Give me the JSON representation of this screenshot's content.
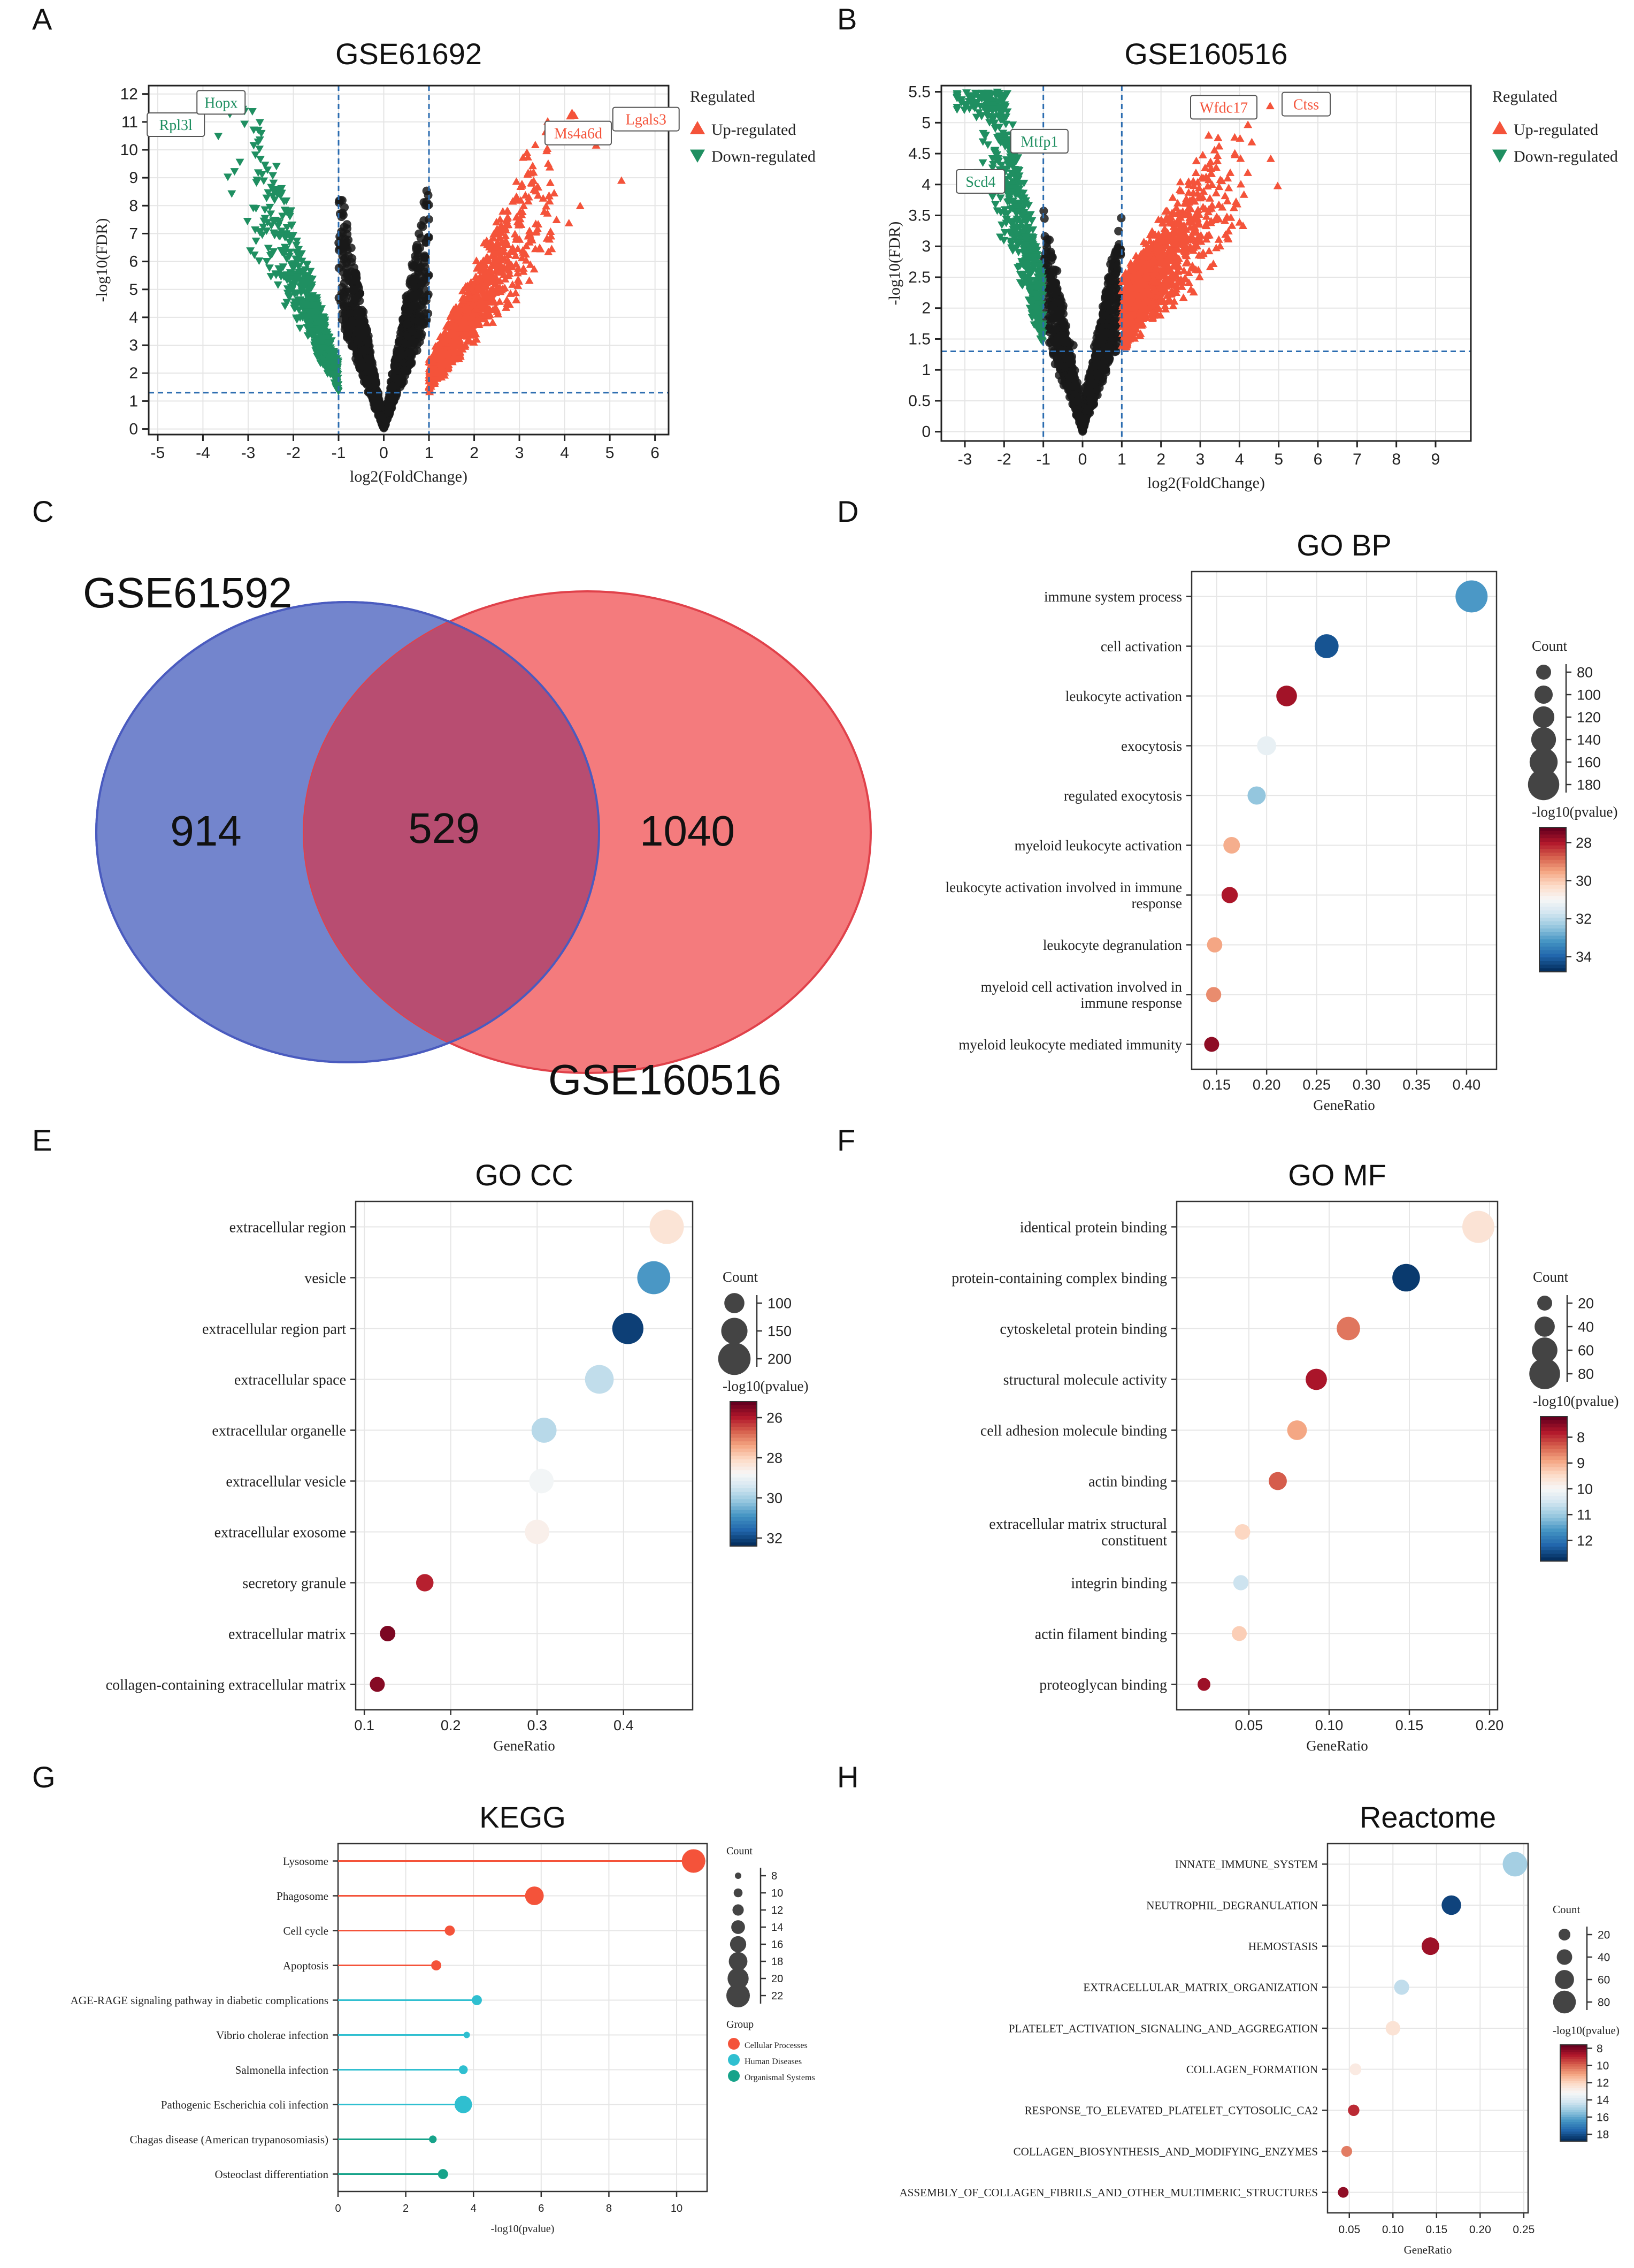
{
  "colors": {
    "up": "#f4533a",
    "down": "#1f8f61",
    "ns": "#1a1a1a",
    "venn_left": "#5a70c4",
    "venn_right": "#f26466",
    "venn_mid": "#b84d71",
    "cell_processes": "#f4533a",
    "human_diseases": "#2fbfd0",
    "organismal_systems": "#17a38a",
    "threshold": "#2b6cb0"
  },
  "panels": [
    "A",
    "B",
    "C",
    "D",
    "E",
    "F",
    "G",
    "H"
  ],
  "chart_data": [
    {
      "id": "A",
      "type": "scatter",
      "title": "GSE61692",
      "xlabel": "log2(FoldChange)",
      "ylabel": "-log10(FDR)",
      "xlim": [
        -5.2,
        6.3
      ],
      "ylim": [
        -0.2,
        12.3
      ],
      "xticks": [
        -5,
        -4,
        -3,
        -2,
        -1,
        0,
        1,
        2,
        3,
        4,
        5,
        6
      ],
      "yticks": [
        0,
        1,
        2,
        3,
        4,
        5,
        6,
        7,
        8,
        9,
        10,
        11,
        12
      ],
      "thresholds": {
        "x": [
          -1,
          1
        ],
        "y": 1.3
      },
      "volcano": {
        "ns_scale": 7.5,
        "sig_ymax": 11.2,
        "x_range": [
          -4.2,
          5.8
        ],
        "n": 1500
      },
      "legend_title": "Regulated",
      "legend": [
        "Up-regulated",
        "Down-regulated"
      ],
      "annotations": [
        {
          "text": "Rpl3l",
          "x": -4.6,
          "y": 10.9,
          "group": "down"
        },
        {
          "text": "Hopx",
          "x": -3.6,
          "y": 11.7,
          "group": "down"
        },
        {
          "text": "Ms4a6d",
          "x": 4.3,
          "y": 10.6,
          "group": "up"
        },
        {
          "text": "Lgals3",
          "x": 5.8,
          "y": 11.1,
          "group": "up"
        }
      ]
    },
    {
      "id": "B",
      "type": "scatter",
      "title": "GSE160516",
      "xlabel": "log2(FoldChange)",
      "ylabel": "-log10(FDR)",
      "xlim": [
        -3.6,
        9.9
      ],
      "ylim": [
        -0.15,
        5.6
      ],
      "xticks": [
        -3,
        -2,
        -1,
        0,
        1,
        2,
        3,
        4,
        5,
        6,
        7,
        8,
        9
      ],
      "yticks": [
        0.0,
        0.5,
        1.0,
        1.5,
        2.0,
        2.5,
        3.0,
        3.5,
        4.0,
        4.5,
        5.0,
        5.5
      ],
      "thresholds": {
        "x": [
          -1,
          1
        ],
        "y": 1.3
      },
      "volcano": {
        "ns_scale": 3.0,
        "sig_ymax": 5.2,
        "x_range": [
          -3.2,
          8.2
        ],
        "n": 1500
      },
      "legend_title": "Regulated",
      "legend": [
        "Up-regulated",
        "Down-regulated"
      ],
      "annotations": [
        {
          "text": "Scd4",
          "x": -2.6,
          "y": 4.05,
          "group": "down"
        },
        {
          "text": "Mtfp1",
          "x": -1.1,
          "y": 4.7,
          "group": "down"
        },
        {
          "text": "Wfdc17",
          "x": 3.6,
          "y": 5.25,
          "group": "up"
        },
        {
          "text": "Ctss",
          "x": 5.7,
          "y": 5.3,
          "group": "up"
        }
      ]
    },
    {
      "id": "C",
      "type": "venn",
      "sets": [
        {
          "name": "GSE61592",
          "only": "914"
        },
        {
          "name": "GSE160516",
          "only": "1040"
        }
      ],
      "intersection": "529"
    },
    {
      "id": "D",
      "type": "scatter",
      "title": "GO BP",
      "xlabel": "GeneRatio",
      "xlim": [
        0.125,
        0.43
      ],
      "xticks": [
        "0.15",
        "0.20",
        "0.25",
        "0.30",
        "0.35",
        "0.40"
      ],
      "terms": [
        "immune system process",
        "cell activation",
        "leukocyte activation",
        "exocytosis",
        "regulated exocytosis",
        "myeloid leukocyte activation",
        "leukocyte activation involved in immune response",
        "leukocyte degranulation",
        "myeloid cell activation involved in immune response",
        "myeloid leukocyte mediated immunity"
      ],
      "x": [
        0.405,
        0.26,
        0.22,
        0.2,
        0.19,
        0.165,
        0.163,
        0.148,
        0.147,
        0.145
      ],
      "count": [
        185,
        135,
        115,
        105,
        100,
        90,
        88,
        82,
        81,
        80
      ],
      "pval": [
        33.2,
        34.3,
        27.8,
        31.3,
        32.5,
        29.6,
        27.9,
        29.5,
        29.2,
        27.6
      ],
      "size_legend": {
        "title": "Count",
        "values": [
          80,
          100,
          120,
          140,
          160,
          180
        ],
        "range": [
          80,
          185
        ]
      },
      "color_legend": {
        "title": "-log10(pvalue)",
        "ticks": [
          28,
          30,
          32,
          34
        ],
        "range": [
          27.2,
          34.8
        ],
        "invert": true
      }
    },
    {
      "id": "E",
      "type": "scatter",
      "title": "GO CC",
      "xlabel": "GeneRatio",
      "xlim": [
        0.09,
        0.48
      ],
      "xticks": [
        "0.1",
        "0.2",
        "0.3",
        "0.4"
      ],
      "terms": [
        "extracellular region",
        "vesicle",
        "extracellular region part",
        "extracellular space",
        "extracellular organelle",
        "extracellular vesicle",
        "extracellular exosome",
        "secretory granule",
        "extracellular matrix",
        "collagen-containing extracellular matrix"
      ],
      "x": [
        0.45,
        0.435,
        0.405,
        0.372,
        0.308,
        0.305,
        0.3,
        0.17,
        0.127,
        0.115
      ],
      "count": [
        215,
        205,
        190,
        170,
        140,
        135,
        135,
        78,
        62,
        58
      ],
      "pval": [
        28.3,
        30.9,
        32.2,
        29.7,
        29.8,
        28.9,
        28.6,
        26.0,
        25.4,
        25.5
      ],
      "size_legend": {
        "title": "Count",
        "values": [
          100,
          150,
          200
        ],
        "range": [
          58,
          215
        ]
      },
      "color_legend": {
        "title": "-log10(pvalue)",
        "ticks": [
          26,
          28,
          30,
          32
        ],
        "range": [
          25.2,
          32.4
        ],
        "invert": true
      }
    },
    {
      "id": "F",
      "type": "scatter",
      "title": "GO MF",
      "xlabel": "GeneRatio",
      "xlim": [
        0.005,
        0.205
      ],
      "xticks": [
        "0.05",
        "0.10",
        "0.15",
        "0.20"
      ],
      "terms": [
        "identical protein binding",
        "protein-containing complex binding",
        "cytoskeletal protein binding",
        "structural molecule activity",
        "cell adhesion molecule binding",
        "actin binding",
        "extracellular matrix structural constituent",
        "integrin binding",
        "actin filament binding",
        "proteoglycan binding"
      ],
      "x": [
        0.193,
        0.148,
        0.112,
        0.092,
        0.08,
        0.068,
        0.046,
        0.045,
        0.044,
        0.022
      ],
      "count": [
        85,
        68,
        52,
        44,
        38,
        32,
        22,
        21,
        20,
        12
      ],
      "pval": [
        9.6,
        12.7,
        8.5,
        7.7,
        8.9,
        8.3,
        9.4,
        10.6,
        9.3,
        7.6
      ],
      "size_legend": {
        "title": "Count",
        "values": [
          20,
          40,
          60,
          80
        ],
        "range": [
          12,
          85
        ]
      },
      "color_legend": {
        "title": "-log10(pvalue)",
        "ticks": [
          8,
          9,
          10,
          11,
          12
        ],
        "range": [
          7.2,
          12.8
        ],
        "invert": true
      }
    },
    {
      "id": "G",
      "type": "lollipop",
      "title": "KEGG",
      "xlabel": "-log10(pvalue)",
      "xlim": [
        0,
        10.9
      ],
      "xticks": [
        "0",
        "2",
        "4",
        "6",
        "8",
        "10"
      ],
      "terms": [
        "Lysosome",
        "Phagosome",
        "Cell cycle",
        "Apoptosis",
        "AGE-RAGE signaling pathway in diabetic complications",
        "Vibrio cholerae infection",
        "Salmonella infection",
        "Pathogenic Escherichia coli infection",
        "Chagas disease (American trypanosomiasis)",
        "Osteoclast differentiation"
      ],
      "x": [
        10.5,
        5.8,
        3.3,
        2.9,
        4.1,
        3.8,
        3.7,
        3.7,
        2.8,
        3.1
      ],
      "count": [
        22,
        18,
        11,
        11,
        11,
        8,
        10,
        17,
        9,
        11
      ],
      "group": [
        "Cellular Processes",
        "Cellular Processes",
        "Cellular Processes",
        "Cellular Processes",
        "Human Diseases",
        "Human Diseases",
        "Human Diseases",
        "Human Diseases",
        "Organismal Systems",
        "Organismal Systems"
      ],
      "size_legend": {
        "title": "Count",
        "values": [
          8,
          10,
          12,
          14,
          16,
          18,
          20,
          22
        ],
        "range": [
          8,
          22
        ]
      },
      "group_legend": {
        "title": "Group",
        "items": [
          "Cellular Processes",
          "Human Diseases",
          "Organismal Systems"
        ]
      }
    },
    {
      "id": "H",
      "type": "scatter",
      "title": "Reactome",
      "xlabel": "GeneRatio",
      "xlim": [
        0.025,
        0.255
      ],
      "xticks": [
        "0.05",
        "0.10",
        "0.15",
        "0.20",
        "0.25"
      ],
      "terms": [
        "INNATE_IMMUNE_SYSTEM",
        "NEUTROPHIL_DEGRANULATION",
        "HEMOSTASIS",
        "EXTRACELLULAR_MATRIX_ORGANIZATION",
        "PLATELET_ACTIVATION_SIGNALING_AND_AGGREGATION",
        "COLLAGEN_FORMATION",
        "RESPONSE_TO_ELEVATED_PLATELET_CYTOSOLIC_CA2",
        "COLLAGEN_BIOSYNTHESIS_AND_MODIFYING_ENZYMES",
        "ASSEMBLY_OF_COLLAGEN_FIBRILS_AND_OTHER_MULTIMERIC_STRUCTURES"
      ],
      "x": [
        0.24,
        0.167,
        0.143,
        0.11,
        0.1,
        0.057,
        0.055,
        0.047,
        0.043
      ],
      "count": [
        90,
        62,
        52,
        38,
        35,
        20,
        18,
        15,
        14
      ],
      "pval": [
        15.1,
        18.4,
        8.4,
        14.6,
        12.4,
        12.7,
        9.0,
        10.3,
        8.2
      ],
      "size_legend": {
        "title": "Count",
        "values": [
          20,
          40,
          60,
          80
        ],
        "range": [
          14,
          90
        ]
      },
      "color_legend": {
        "title": "-log10(pvalue)",
        "ticks": [
          8,
          10,
          12,
          14,
          16,
          18
        ],
        "range": [
          7.6,
          18.8
        ],
        "invert": true
      }
    }
  ]
}
